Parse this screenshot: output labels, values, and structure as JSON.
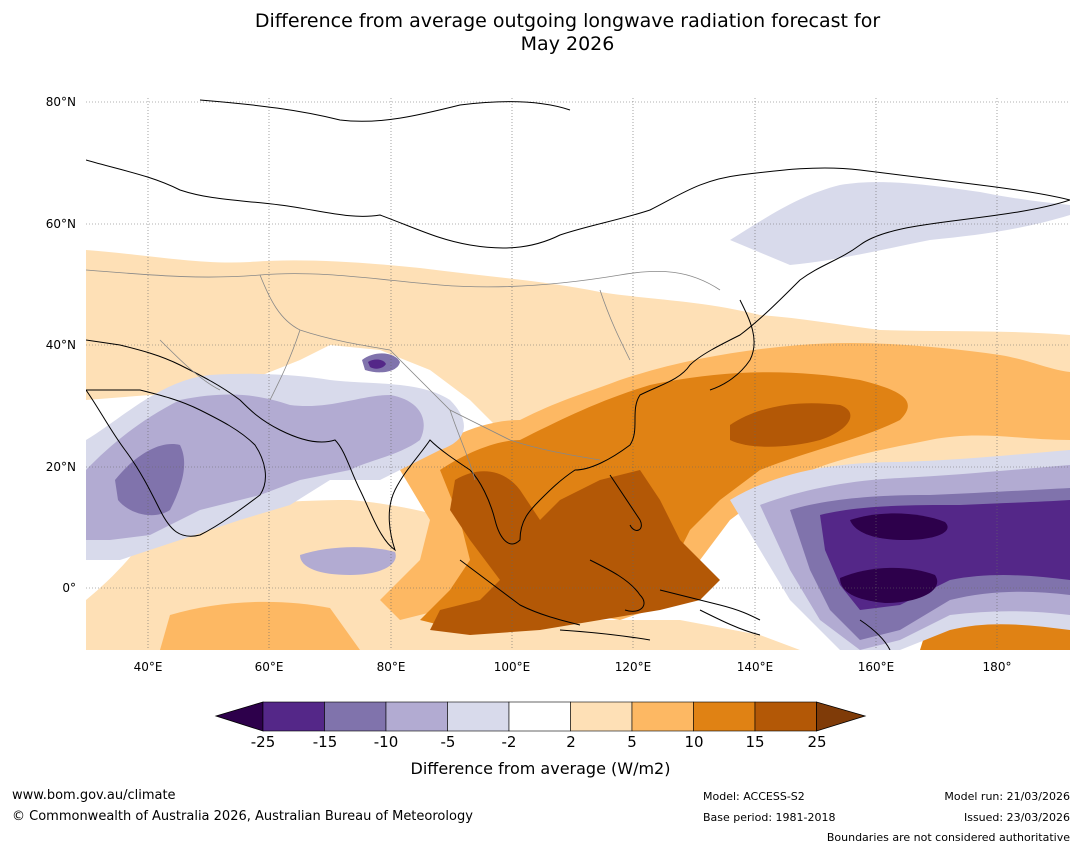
{
  "title": {
    "line1": "Difference from average outgoing longwave radiation forecast for",
    "line2": "May 2026"
  },
  "map": {
    "region": "Asia / Indian Ocean / Western Pacific",
    "lat_labels": [
      "80°N",
      "60°N",
      "40°N",
      "20°N",
      "0°"
    ],
    "lon_labels": [
      "40°E",
      "60°E",
      "80°E",
      "100°E",
      "120°E",
      "140°E",
      "160°E",
      "180°"
    ]
  },
  "colorbar": {
    "ticks": [
      "-25",
      "-15",
      "-10",
      "-5",
      "-2",
      "2",
      "5",
      "10",
      "15",
      "25"
    ],
    "colors": [
      "#2d004b",
      "#542788",
      "#8073ac",
      "#b2abd2",
      "#d8daeb",
      "#ffffff",
      "#fee0b6",
      "#fdb863",
      "#e08214",
      "#b35806",
      "#7f3b08"
    ],
    "label": "Difference from average (W/m2)"
  },
  "footer": {
    "website": "www.bom.gov.au/climate",
    "copyright": "© Commonwealth of Australia 2026, Australian Bureau of Meteorology",
    "model": "Model: ACCESS-S2",
    "base_period": "Base period: 1981-2018",
    "model_run": "Model run: 21/03/2026",
    "issued": "Issued: 23/03/2026",
    "disclaimer": "Boundaries are not considered authoritative"
  }
}
